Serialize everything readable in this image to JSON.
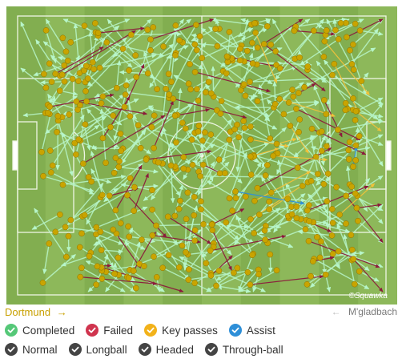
{
  "watermark": "©Squawka",
  "teams": {
    "home": "Dortmund",
    "home_arrow": "→",
    "away": "M'gladbach",
    "away_arrow": "←"
  },
  "legend": {
    "status": [
      {
        "label": "Completed",
        "color": "#55c878",
        "icon": "check-icon"
      },
      {
        "label": "Failed",
        "color": "#d0344e",
        "icon": "check-icon"
      },
      {
        "label": "Key passes",
        "color": "#f2b21a",
        "icon": "check-icon"
      },
      {
        "label": "Assist",
        "color": "#2e8fd8",
        "icon": "check-icon"
      }
    ],
    "types": [
      {
        "label": "Normal",
        "color": "#444444",
        "icon": "check-icon"
      },
      {
        "label": "Longball",
        "color": "#444444",
        "icon": "check-icon"
      },
      {
        "label": "Headed",
        "color": "#444444",
        "icon": "check-icon"
      },
      {
        "label": "Through-ball",
        "color": "#444444",
        "icon": "check-icon"
      }
    ]
  },
  "colors": {
    "pitch_light": "#8db85a",
    "pitch_dark": "#82ae50",
    "line": "#eef5e4",
    "completed": "#b7f5c9",
    "failed": "#8b1a3c",
    "key_pass": "#f2c23a",
    "assist": "#2e8fd8",
    "origin": "#c9a400"
  }
}
